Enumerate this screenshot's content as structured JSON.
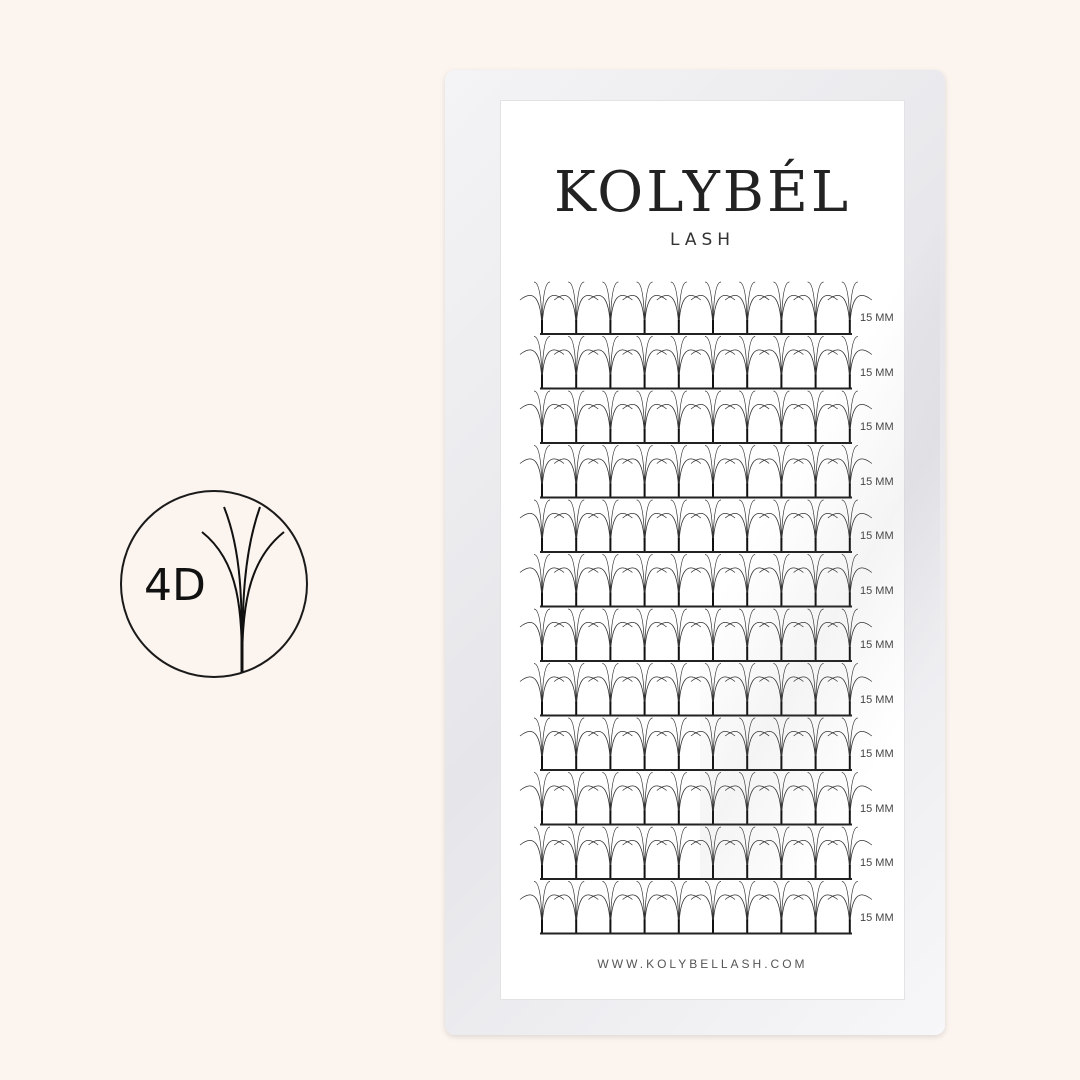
{
  "badge": {
    "label": "4D"
  },
  "product": {
    "brand": "KOLYBÉL",
    "subtitle": "LASH",
    "website": "WWW.KOLYBELLASH.COM",
    "rows": [
      "15 MM",
      "15 MM",
      "15 MM",
      "15 MM",
      "15 MM",
      "15 MM",
      "15 MM",
      "15 MM",
      "15 MM",
      "15 MM",
      "15 MM",
      "15 MM"
    ]
  },
  "colors": {
    "background": "#fcf4ee",
    "ink": "#1a1a1a",
    "card": "#ffffff"
  }
}
